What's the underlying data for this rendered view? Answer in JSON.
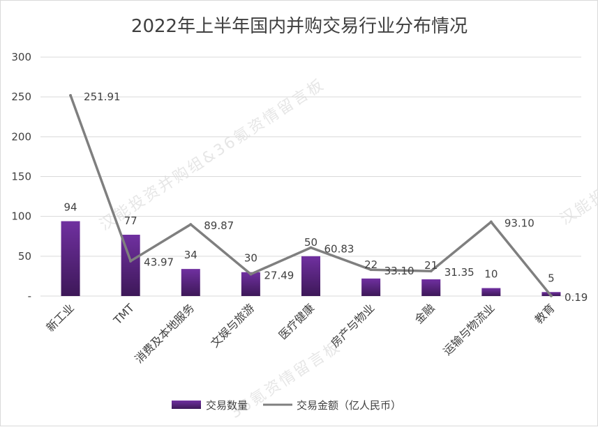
{
  "watermark": {
    "text_a": "汉能投资并购组&36氪资情留言板",
    "text_b": "36氪资情留言板",
    "text_c": "汉能投"
  },
  "chart_data": {
    "type": "bar",
    "title": "2022年上半年国内并购交易行业分布情况",
    "categories": [
      "新工业",
      "TMT",
      "消费及本地服务",
      "文娱与旅游",
      "医疗健康",
      "房产与物业",
      "金融",
      "运输与物流业",
      "教育"
    ],
    "series": [
      {
        "name": "交易数量",
        "type": "bar",
        "color": "#7030a0",
        "values": [
          94,
          77,
          34,
          30,
          50,
          22,
          21,
          10,
          5
        ],
        "labels": [
          "94",
          "77",
          "34",
          "30",
          "50",
          "22",
          "21",
          "10",
          "5"
        ]
      },
      {
        "name": "交易金额（亿人民币）",
        "type": "line",
        "color": "#7f7f7f",
        "values": [
          251.91,
          43.97,
          89.87,
          27.49,
          60.83,
          33.1,
          31.35,
          93.1,
          0.19
        ],
        "labels": [
          "251.91",
          "43.97",
          "89.87",
          "27.49",
          "60.83",
          "33.10",
          "31.35",
          "93.10",
          "0.19"
        ]
      }
    ],
    "y_ticks": [
      "-",
      "50",
      "100",
      "150",
      "200",
      "250",
      "300"
    ],
    "ylim": [
      0,
      300
    ],
    "grid": true,
    "legend": "bottom"
  }
}
